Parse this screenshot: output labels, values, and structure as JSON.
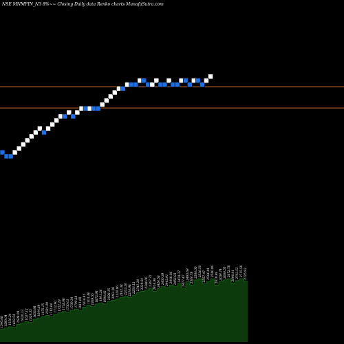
{
  "chart_data": {
    "type": "renko",
    "title": "NSE MNMFIN_N3 8%~~ Closing Daily data Renko charts MunafaSutra.com",
    "colors": {
      "background": "#000000",
      "up_brick": "#ffffff",
      "down_brick": "#1f6fe0",
      "reference_line": "#c0642a",
      "volume_fill": "#0c3a0c",
      "volume_label": "#ffffff"
    },
    "brick_levels": [
      0,
      -1,
      -1,
      0,
      1,
      2,
      3,
      4,
      5,
      6,
      5,
      6,
      7,
      8,
      9,
      9,
      10,
      9,
      10,
      11,
      11,
      11,
      11,
      11,
      12,
      13,
      14,
      15,
      16,
      16,
      17,
      17,
      17,
      18,
      18,
      17,
      17,
      18,
      17,
      17,
      18,
      17,
      17,
      18,
      18,
      17,
      18,
      18,
      17,
      18,
      19
    ],
    "brick_directions": [
      "down",
      "down",
      "down",
      "up",
      "up",
      "up",
      "up",
      "up",
      "up",
      "up",
      "down",
      "up",
      "up",
      "up",
      "up",
      "down",
      "up",
      "down",
      "up",
      "up",
      "down",
      "up",
      "down",
      "down",
      "up",
      "up",
      "up",
      "up",
      "up",
      "down",
      "up",
      "down",
      "down",
      "up",
      "down",
      "down",
      "up",
      "up",
      "down",
      "down",
      "up",
      "down",
      "down",
      "up",
      "down",
      "down",
      "up",
      "down",
      "down",
      "up",
      "up"
    ],
    "reference_lines": [
      "upper",
      "lower"
    ],
    "volume_bars": [
      0.2,
      0.22,
      0.24,
      0.23,
      0.28,
      0.3,
      0.32,
      0.31,
      0.36,
      0.38,
      0.4,
      0.42,
      0.4,
      0.44,
      0.46,
      0.48,
      0.47,
      0.5,
      0.52,
      0.5,
      0.55,
      0.58,
      0.56,
      0.6,
      0.62,
      0.6,
      0.64,
      0.66,
      0.68,
      0.7,
      0.72,
      0.7,
      0.74,
      0.78,
      0.8,
      0.82,
      0.85,
      0.8,
      0.84,
      0.88,
      0.86,
      0.9,
      0.88,
      0.92,
      0.85,
      0.95,
      0.9,
      0.98,
      1.0,
      0.92,
      0.96,
      1.0,
      0.9,
      0.95,
      0.98,
      1.0,
      0.93,
      0.97,
      1.0,
      0.96
    ],
    "volume_labels": [
      "1540.68",
      "1580.04",
      "1556.24",
      "1602.54",
      "1608.09",
      "1620.33",
      "1627.12",
      "1629.35",
      "1633.98",
      "1644.69",
      "1675.15",
      "1691.09",
      "1712.04",
      "1712.90",
      "1722.29",
      "1718.98",
      "1730.01",
      "1739.34",
      "1790.38",
      "1811.69",
      "1814.91",
      "1831.86",
      "1869.55",
      "1872.98",
      "1901.36",
      "1906.66",
      "2028.15",
      "2061.06",
      "2110.96",
      "2162.38",
      "2203.30",
      "2216.98",
      "2256.13",
      "2341.24",
      "2339.64",
      "2344.06",
      "2367.72",
      "2416.96",
      "2424.58",
      "2430.39",
      "2443.91",
      "2448.06",
      "2456.93",
      "2474.37",
      "2477.47",
      "2493.69",
      "2500.78",
      "2506.00",
      "2526.50",
      "2557.47",
      "2564.44",
      "2580.96",
      "2619.96",
      "2654.74",
      "2666.55",
      "2672.78",
      "2690.01",
      "2703.53",
      "2715.58",
      "2725.93"
    ]
  }
}
